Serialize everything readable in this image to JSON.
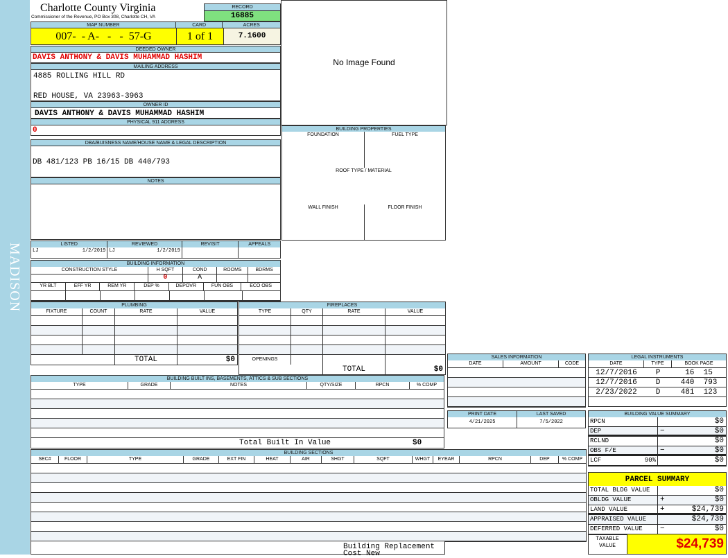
{
  "sidebar": {
    "district": "MADISON"
  },
  "header": {
    "title": "Charlotte County Virginia",
    "subtitle": "Commissioner of the Revenue, PO Box 308, Charlotte CH, VA",
    "record_label": "RECORD",
    "record": "16885"
  },
  "parcel": {
    "map_label": "MAP NUMBER",
    "map_number": "007-  - A-   -   -  57-G",
    "card_label": "CARD",
    "card": "1 of 1",
    "acres_label": "ACRES",
    "acres": "7.1600"
  },
  "owner": {
    "deeded_label": "DEEDED OWNER",
    "deeded": "DAVIS ANTHONY & DAVIS MUHAMMAD HASHIM",
    "mailing_label": "MAILING ADDRESS",
    "address1": "4885 ROLLING HILL RD",
    "address2": "RED HOUSE, VA 23963-3963",
    "id_label": "OWNER ID",
    "owner_id": "DAVIS ANTHONY & DAVIS MUHAMMAD HASHIM",
    "physical_label": "PHYSICAL 911 ADDRESS",
    "physical": "0"
  },
  "image": {
    "placeholder": "No Image Found"
  },
  "dba": {
    "label": "DBA/BUISNESS NAME/HOUSE NAME & LEGAL DESCRIPTION",
    "value": "DB 481/123 PB 16/15 DB 440/793"
  },
  "notes": {
    "label": "NOTES",
    "value": ""
  },
  "review": {
    "listed_label": "LISTED",
    "listed_by": "LJ",
    "listed_date": "1/2/2019",
    "reviewed_label": "REVIEWED",
    "reviewed_by": "LJ",
    "reviewed_date": "1/2/2019",
    "revisit_label": "REVISIT",
    "appeals_label": "APPEALS"
  },
  "building_info": {
    "label": "BUILDING INFORMATION",
    "headers1": [
      "CONSTRUCTION STYLE",
      "H SQFT",
      "COND",
      "ROOMS",
      "BDRMS"
    ],
    "values1": [
      "",
      "0",
      "A",
      "",
      ""
    ],
    "headers2": [
      "YR BLT",
      "EFF YR",
      "REM YR",
      "DEP %",
      "DEPOVR",
      "FUN OBS",
      "ECO OBS"
    ]
  },
  "building_properties": {
    "label": "BUILDING PROPERTIES",
    "foundation": "FOUNDATION",
    "fuel": "FUEL TYPE",
    "roof": "ROOF TYPE / MATERIAL",
    "wall": "WALL FINISH",
    "floor": "FLOOR FINISH"
  },
  "plumbing": {
    "label": "PLUMBING",
    "headers": [
      "FIXTURE",
      "COUNT",
      "RATE",
      "VALUE"
    ],
    "total_label": "TOTAL",
    "total": "$0"
  },
  "fireplaces": {
    "label": "FIREPLACES",
    "headers": [
      "TYPE",
      "QTY",
      "RATE",
      "VALUE"
    ],
    "openings_label": "OPENINGS",
    "total_label": "TOTAL",
    "total": "$0"
  },
  "built_ins": {
    "label": "BUILDING BUILT INS, BASEMENTS, ATTICS & SUB SECTIONS",
    "headers": [
      "TYPE",
      "GRADE",
      "NOTES",
      "QTY/SIZE",
      "RPCN",
      "% COMP"
    ],
    "total_label": "Total Built In Value",
    "total": "$0"
  },
  "sections": {
    "label": "BUILDING SECTIONS",
    "headers": [
      "SEC#",
      "FLOOR",
      "TYPE",
      "GRADE",
      "EXT FIN",
      "HEAT",
      "AIR",
      "SHGT",
      "SQFT",
      "WHGT",
      "EYEAR",
      "RPCN",
      "DEP",
      "% COMP"
    ],
    "footer": "Building Replacement Cost New"
  },
  "sales": {
    "label": "SALES INFORMATION",
    "headers": [
      "DATE",
      "AMOUNT",
      "CODE"
    ]
  },
  "dates": {
    "print_label": "PRINT DATE",
    "print": "4/21/2025",
    "saved_label": "LAST SAVED",
    "saved": "7/5/2022"
  },
  "legal": {
    "label": "LEGAL INSTRUMENTS",
    "headers": [
      "DATE",
      "TYPE",
      "BOOK PAGE"
    ],
    "rows": [
      [
        "12/7/2016",
        "P",
        "16  15"
      ],
      [
        "12/7/2016",
        "D",
        "440  793"
      ],
      [
        "2/23/2022",
        "D",
        "481  123"
      ]
    ]
  },
  "value_summary": {
    "label": "BUILDING VALUE SUMMARY",
    "rows": [
      {
        "label": "RPCN",
        "sign": "",
        "value": "$0"
      },
      {
        "label": "DEP",
        "sign": "−",
        "value": "$0"
      },
      {
        "label": "RCLND",
        "sign": "",
        "value": "$0"
      },
      {
        "label": "OBS F/E",
        "sign": "−",
        "value": "$0"
      },
      {
        "label": "LCF",
        "pct": "90%",
        "sign": "",
        "value": "$0"
      }
    ]
  },
  "parcel_summary": {
    "label": "PARCEL SUMMARY",
    "rows": [
      {
        "label": "TOTAL BLDG VALUE",
        "sign": "",
        "value": "$0"
      },
      {
        "label": "OBLDG VALUE",
        "sign": "+",
        "value": "$0"
      },
      {
        "label": "LAND VALUE",
        "sign": "+",
        "value": "$24,739"
      },
      {
        "label": "APPRAISED VALUE",
        "sign": "",
        "value": "$24,739"
      },
      {
        "label": "DEFERRED VALUE",
        "sign": "−",
        "value": "$0"
      }
    ],
    "taxable_label": "TAXABLE VALUE",
    "taxable": "$24,739"
  },
  "colors": {
    "header": "#a9d5e5",
    "yellow": "#ffff00",
    "green": "#7fe07f",
    "red": "#e00000"
  }
}
